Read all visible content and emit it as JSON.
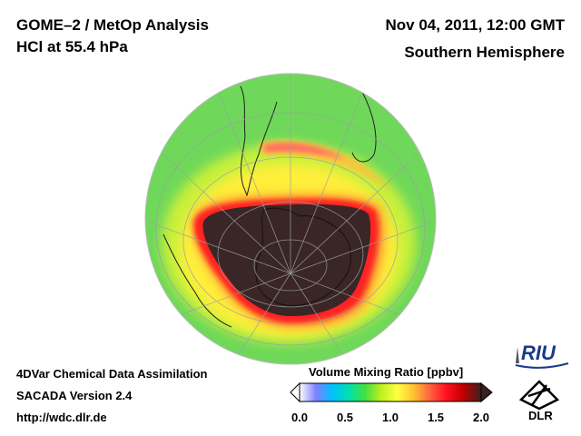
{
  "header": {
    "left_line1": "GOME–2 / MetOp Analysis",
    "left_line2": "HCl at 55.4 hPa",
    "right_line1": "Nov 04, 2011, 12:00 GMT",
    "right_line2": "Southern Hemisphere"
  },
  "footer": {
    "line1": "4DVar Chemical Data Assimilation",
    "line2": "SACADA Version 2.4",
    "line3": "http://wdc.dlr.de"
  },
  "colorbar": {
    "title": "Volume Mixing Ratio [ppbv]",
    "ticks": [
      "0.0",
      "0.5",
      "1.0",
      "1.5",
      "2.0"
    ],
    "min": 0.0,
    "max": 2.0,
    "colors": [
      "#ffffff",
      "#8080ff",
      "#00c0ff",
      "#00e0b0",
      "#40e040",
      "#c0f020",
      "#ffff40",
      "#ffc030",
      "#ff6040",
      "#ff1020",
      "#c00000",
      "#3a2020"
    ]
  },
  "map": {
    "projection": "orthographic-south-polar",
    "colors": {
      "background": "#6fd85a",
      "mid": "#c8f03a",
      "high": "#ffef3a",
      "edge": "#ff3030",
      "vortex": "#3a2626"
    }
  },
  "logos": {
    "riu_text": "RIU",
    "dlr_text": "DLR"
  }
}
